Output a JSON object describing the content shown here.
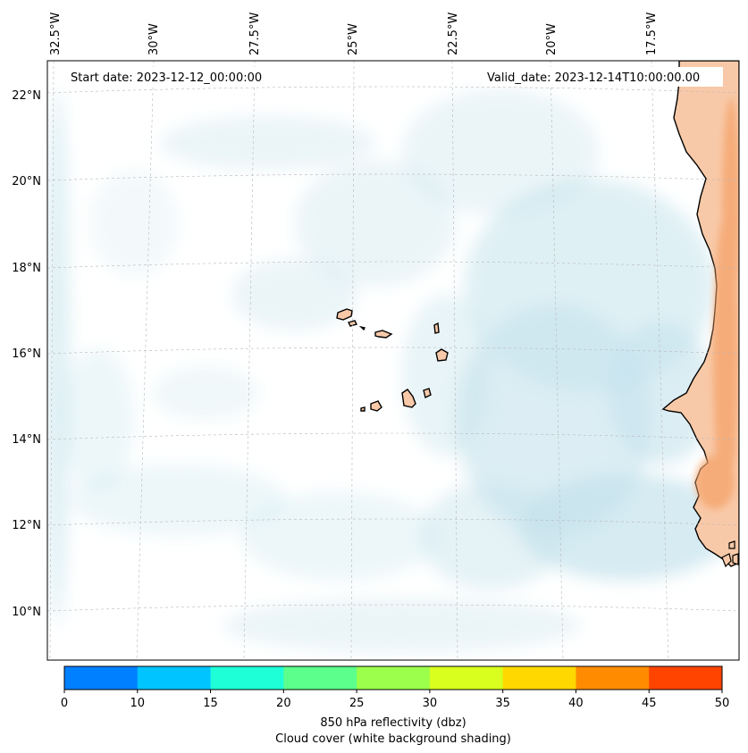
{
  "map": {
    "lon_labels": [
      "32.5°W",
      "30°W",
      "27.5°W",
      "25°W",
      "22.5°W",
      "20°W",
      "17.5°W"
    ],
    "lat_labels": [
      "22°N",
      "20°N",
      "18°N",
      "16°N",
      "14°N",
      "12°N",
      "10°N"
    ],
    "start_date": "Start date: 2023-12-12_00:00:00",
    "valid_date": "Valid_date: 2023-12-14T10:00:00.00",
    "land_color": "#f8c9a8",
    "land_color_dark": "#f5a56e",
    "cloud_color": "#c5e3ec",
    "gridlines": true
  },
  "colorbar": {
    "ticks": [
      "0",
      "10",
      "15",
      "20",
      "25",
      "30",
      "35",
      "40",
      "45",
      "50"
    ],
    "colors": [
      "#0080ff",
      "#00c4ff",
      "#1effd8",
      "#5cff8c",
      "#9cff4c",
      "#d8ff1e",
      "#ffd800",
      "#ff8c00",
      "#ff4400"
    ],
    "label_line1": "850 hPa reflectivity (dbz)",
    "label_line2": "Cloud cover (white background shading)"
  }
}
